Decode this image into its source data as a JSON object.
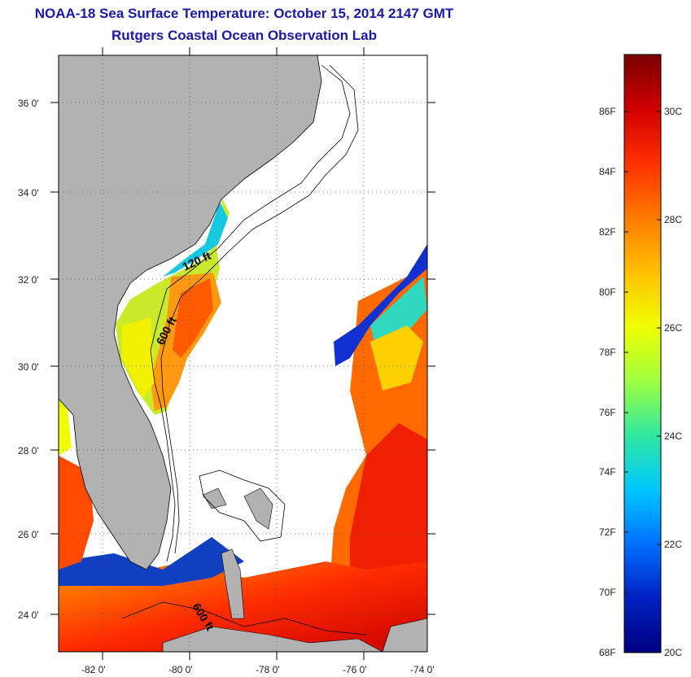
{
  "title": "NOAA-18 Sea Surface Temperature:  October 15, 2014 2147 GMT",
  "subtitle": "Rutgers Coastal Ocean Observation Lab",
  "map": {
    "lat_labels": [
      "36 0'",
      "34 0'",
      "32 0'",
      "30 0'",
      "28 0'",
      "26 0'",
      "24 0'"
    ],
    "lon_labels": [
      "-82 0'",
      "-80 0'",
      "-78 0'",
      "-76 0'",
      "-74 0'"
    ],
    "contour_labels": [
      "120 ft",
      "600 ft",
      "600 ft"
    ],
    "land_color": "#b2b2b2"
  },
  "colorbar": {
    "f_labels": [
      "86F",
      "84F",
      "82F",
      "80F",
      "78F",
      "76F",
      "74F",
      "72F",
      "70F",
      "68F"
    ],
    "c_labels": [
      "30C",
      "28C",
      "26C",
      "24C",
      "22C",
      "20C"
    ],
    "stops": [
      "#7a0000",
      "#d00000",
      "#ff3000",
      "#ff7a00",
      "#ffc000",
      "#f0ff00",
      "#a0ff40",
      "#30e8a0",
      "#00c8ff",
      "#0070ff",
      "#0020c0",
      "#000080"
    ]
  }
}
